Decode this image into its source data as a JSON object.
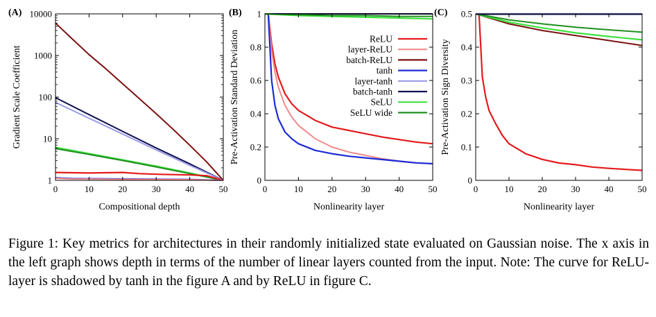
{
  "caption": "Figure 1: Key metrics for architectures in their randomly initialized state evaluated on Gaussian noise. The x axis in the left graph shows depth in terms of the number of linear layers counted from the input. Note: The curve for ReLU-layer is shadowed by tanh in the figure A and by ReLU in figure C.",
  "legend": [
    {
      "name": "ReLU",
      "color": "#e41a1c"
    },
    {
      "name": "layer-ReLU",
      "color": "#f08a8a"
    },
    {
      "name": "batch-ReLU",
      "color": "#7b1010"
    },
    {
      "name": "tanh",
      "color": "#1c2bd4"
    },
    {
      "name": "layer-tanh",
      "color": "#9a9ae8"
    },
    {
      "name": "batch-tanh",
      "color": "#10104f"
    },
    {
      "name": "SeLU",
      "color": "#3ee03e"
    },
    {
      "name": "SeLU wide",
      "color": "#1f8f1f"
    }
  ],
  "chart_data": [
    {
      "panel": "(A)",
      "type": "line",
      "xlabel": "Compositional depth",
      "ylabel": "Gradient Scale Coefficient",
      "xlim": [
        0,
        50
      ],
      "ylim": [
        1,
        10000
      ],
      "yscale": "log",
      "xticks": [
        0,
        10,
        20,
        30,
        40,
        50
      ],
      "yticks": [
        1,
        10,
        100,
        1000,
        10000
      ],
      "yticklabels": [
        "1",
        "10",
        "100",
        "1000",
        "10000"
      ],
      "grid": false,
      "series": [
        {
          "name": "batch-ReLU",
          "x": [
            0,
            5,
            10,
            15,
            20,
            25,
            30,
            35,
            40,
            45,
            50
          ],
          "values": [
            6000,
            2500,
            1050,
            480,
            210,
            92,
            40,
            17,
            7,
            2.8,
            1
          ]
        },
        {
          "name": "batch-tanh",
          "x": [
            0,
            10,
            20,
            30,
            40,
            50
          ],
          "values": [
            97,
            38,
            15,
            6,
            2.5,
            1
          ]
        },
        {
          "name": "layer-tanh",
          "x": [
            0,
            10,
            20,
            30,
            40,
            50
          ],
          "values": [
            75,
            31,
            13,
            5.4,
            2.3,
            1
          ]
        },
        {
          "name": "SeLU",
          "x": [
            0,
            10,
            20,
            30,
            40,
            50
          ],
          "values": [
            6.2,
            4.4,
            3.1,
            2.2,
            1.5,
            1
          ]
        },
        {
          "name": "SeLU wide",
          "x": [
            0,
            10,
            20,
            30,
            40,
            50
          ],
          "values": [
            5.8,
            4.2,
            3.0,
            2.1,
            1.45,
            1
          ]
        },
        {
          "name": "ReLU",
          "x": [
            0,
            10,
            20,
            25,
            30,
            40,
            45,
            50
          ],
          "values": [
            1.55,
            1.5,
            1.55,
            1.45,
            1.4,
            1.35,
            1.3,
            1
          ]
        },
        {
          "name": "tanh",
          "x": [
            0,
            5,
            20,
            40,
            50
          ],
          "values": [
            1.15,
            1.1,
            1.08,
            1.05,
            1
          ]
        },
        {
          "name": "layer-ReLU",
          "x": [
            0,
            5,
            20,
            40,
            50
          ],
          "values": [
            1.12,
            1.08,
            1.06,
            1.04,
            1
          ]
        }
      ]
    },
    {
      "panel": "(B)",
      "type": "line",
      "xlabel": "Nonlinearity layer",
      "ylabel": "Pre-Activation Standard Deviation",
      "xlim": [
        0,
        50
      ],
      "ylim": [
        0,
        1
      ],
      "xticks": [
        0,
        10,
        20,
        30,
        40,
        50
      ],
      "yticks": [
        0,
        0.2,
        0.4,
        0.6,
        0.8,
        1
      ],
      "yticklabels": [
        "0",
        "0.2",
        "0.4",
        "0.6",
        "0.8",
        "1"
      ],
      "grid": false,
      "legend_position": "right",
      "series": [
        {
          "name": "ReLU",
          "x": [
            1,
            2,
            3,
            4,
            6,
            8,
            10,
            15,
            20,
            25,
            30,
            35,
            40,
            45,
            50
          ],
          "values": [
            1,
            0.82,
            0.7,
            0.62,
            0.52,
            0.46,
            0.42,
            0.36,
            0.32,
            0.3,
            0.28,
            0.26,
            0.245,
            0.23,
            0.22
          ]
        },
        {
          "name": "layer-ReLU",
          "x": [
            1,
            2,
            3,
            4,
            6,
            8,
            10,
            15,
            20,
            25,
            30,
            35,
            40,
            45,
            50
          ],
          "values": [
            1,
            0.78,
            0.65,
            0.56,
            0.45,
            0.38,
            0.33,
            0.25,
            0.2,
            0.17,
            0.15,
            0.13,
            0.115,
            0.105,
            0.1
          ]
        },
        {
          "name": "batch-ReLU",
          "x": [
            0,
            10,
            20,
            30,
            40,
            50
          ],
          "values": [
            1,
            1,
            1,
            1,
            1,
            1
          ]
        },
        {
          "name": "tanh",
          "x": [
            1,
            2,
            3,
            4,
            6,
            8,
            10,
            15,
            20,
            25,
            30,
            35,
            40,
            45,
            50
          ],
          "values": [
            1,
            0.6,
            0.45,
            0.37,
            0.29,
            0.25,
            0.22,
            0.18,
            0.16,
            0.145,
            0.135,
            0.125,
            0.115,
            0.105,
            0.1
          ]
        },
        {
          "name": "layer-tanh",
          "x": [
            0,
            10,
            20,
            30,
            40,
            50
          ],
          "values": [
            1,
            1,
            1,
            1,
            1,
            1
          ]
        },
        {
          "name": "batch-tanh",
          "x": [
            0,
            10,
            20,
            30,
            40,
            50
          ],
          "values": [
            1,
            1,
            1,
            1,
            1,
            1
          ]
        },
        {
          "name": "SeLU",
          "x": [
            0,
            10,
            20,
            30,
            40,
            50
          ],
          "values": [
            1,
            0.99,
            0.985,
            0.98,
            0.975,
            0.97
          ]
        },
        {
          "name": "SeLU wide",
          "x": [
            0,
            10,
            20,
            30,
            40,
            50
          ],
          "values": [
            1,
            0.995,
            0.99,
            0.99,
            0.985,
            0.985
          ]
        }
      ]
    },
    {
      "panel": "(C)",
      "type": "line",
      "xlabel": "Nonlinearity layer",
      "ylabel": "Pre-Activation Sign Diversity",
      "xlim": [
        0,
        50
      ],
      "ylim": [
        0,
        0.5
      ],
      "xticks": [
        0,
        10,
        20,
        30,
        40,
        50
      ],
      "yticks": [
        0,
        0.1,
        0.2,
        0.3,
        0.4,
        0.5
      ],
      "yticklabels": [
        "0",
        "0.1",
        "0.2",
        "0.3",
        "0.4",
        "0.5"
      ],
      "grid": false,
      "series": [
        {
          "name": "ReLU",
          "x": [
            1,
            2,
            3,
            4,
            6,
            8,
            10,
            15,
            20,
            25,
            30,
            35,
            40,
            45,
            50
          ],
          "values": [
            0.5,
            0.31,
            0.25,
            0.21,
            0.17,
            0.135,
            0.11,
            0.08,
            0.063,
            0.052,
            0.047,
            0.04,
            0.036,
            0.033,
            0.03
          ]
        },
        {
          "name": "batch-ReLU",
          "x": [
            0,
            10,
            20,
            30,
            40,
            50
          ],
          "values": [
            0.5,
            0.47,
            0.45,
            0.435,
            0.42,
            0.405
          ]
        },
        {
          "name": "SeLU",
          "x": [
            0,
            10,
            20,
            30,
            40,
            50
          ],
          "values": [
            0.5,
            0.475,
            0.458,
            0.443,
            0.432,
            0.422
          ]
        },
        {
          "name": "SeLU wide",
          "x": [
            0,
            10,
            20,
            30,
            40,
            50
          ],
          "values": [
            0.5,
            0.482,
            0.47,
            0.46,
            0.452,
            0.445
          ]
        },
        {
          "name": "tanh",
          "x": [
            0,
            10,
            20,
            30,
            40,
            50
          ],
          "values": [
            0.5,
            0.5,
            0.5,
            0.5,
            0.5,
            0.5
          ]
        },
        {
          "name": "layer-tanh",
          "x": [
            0,
            10,
            20,
            30,
            40,
            50
          ],
          "values": [
            0.5,
            0.5,
            0.5,
            0.5,
            0.5,
            0.5
          ]
        },
        {
          "name": "batch-tanh",
          "x": [
            0,
            10,
            20,
            30,
            40,
            50
          ],
          "values": [
            0.499,
            0.499,
            0.499,
            0.499,
            0.499,
            0.499
          ]
        }
      ]
    }
  ]
}
